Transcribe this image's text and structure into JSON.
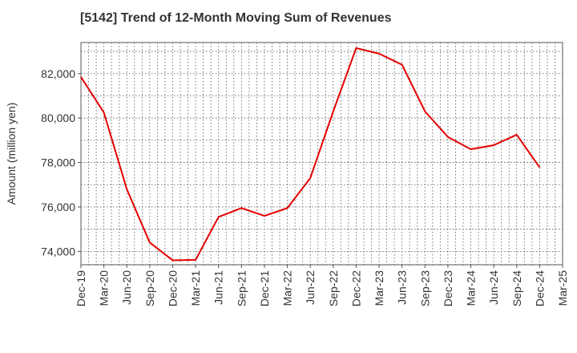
{
  "chart_data": {
    "type": "line",
    "title": "[5142]  Trend of 12-Month Moving Sum of Revenues",
    "xlabel": "",
    "ylabel": "Amount (million yen)",
    "x": [
      "Dec-19",
      "Mar-20",
      "Jun-20",
      "Sep-20",
      "Dec-20",
      "Mar-21",
      "Jun-21",
      "Sep-21",
      "Dec-21",
      "Mar-22",
      "Jun-22",
      "Sep-22",
      "Dec-22",
      "Mar-23",
      "Jun-23",
      "Sep-23",
      "Dec-23",
      "Mar-24",
      "Jun-24",
      "Sep-24",
      "Dec-24"
    ],
    "x_ticks": [
      "Dec-19",
      "Mar-20",
      "Jun-20",
      "Sep-20",
      "Dec-20",
      "Mar-21",
      "Jun-21",
      "Sep-21",
      "Dec-21",
      "Mar-22",
      "Jun-22",
      "Sep-22",
      "Dec-22",
      "Mar-23",
      "Jun-23",
      "Sep-23",
      "Dec-23",
      "Mar-24",
      "Jun-24",
      "Sep-24",
      "Dec-24",
      "Mar-25"
    ],
    "series": [
      {
        "values": [
          81850,
          80250,
          76800,
          74400,
          73600,
          73620,
          75550,
          75950,
          75600,
          75950,
          77300,
          80300,
          83150,
          82900,
          82400,
          80300,
          79150,
          78600,
          78780,
          79250,
          77780
        ]
      }
    ],
    "y_ticks": [
      74000,
      76000,
      78000,
      80000,
      82000
    ],
    "y_tick_labels": [
      "74,000",
      "76,000",
      "78,000",
      "80,000",
      "82,000"
    ],
    "ylim": [
      73400,
      83400
    ],
    "grid": true,
    "legend": "none",
    "line_color": "#e60000"
  }
}
